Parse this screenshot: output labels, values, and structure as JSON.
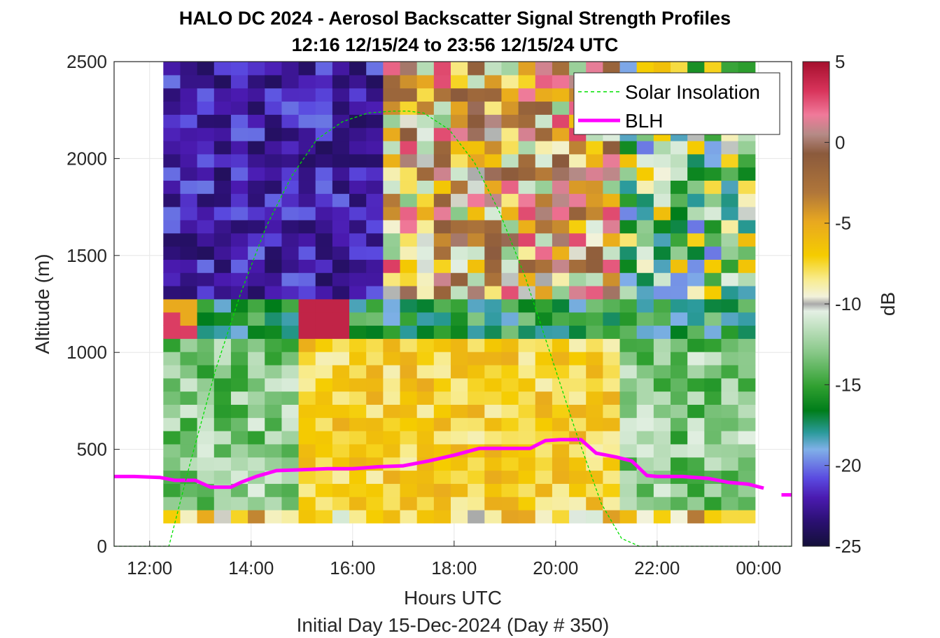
{
  "chart_data": {
    "type": "heatmap",
    "title": "HALO DC 2024 - Aerosol Backscatter Signal Strength Profiles",
    "subtitle": "12:16 12/15/24 to 23:56 12/15/24  UTC",
    "xlabel": "Hours UTC",
    "footnote": "Initial Day 15-Dec-2024 (Day # 350)",
    "ylabel": "Altitude (m)",
    "colorbar_label": "dB",
    "xlim": [
      11.3,
      24.65
    ],
    "ylim": [
      0,
      2500
    ],
    "x_ticks": [
      {
        "value": 12,
        "label": "12:00"
      },
      {
        "value": 14,
        "label": "14:00"
      },
      {
        "value": 16,
        "label": "16:00"
      },
      {
        "value": 18,
        "label": "18:00"
      },
      {
        "value": 20,
        "label": "20:00"
      },
      {
        "value": 22,
        "label": "22:00"
      },
      {
        "value": 24,
        "label": "00:00"
      }
    ],
    "y_ticks": [
      0,
      500,
      1000,
      1500,
      2000,
      2500
    ],
    "colorbar_ticks": [
      5,
      0,
      -5,
      -10,
      -15,
      -20,
      -25
    ],
    "clim": [
      -25,
      5
    ],
    "grid": true,
    "legend": {
      "position": "top-right",
      "entries": [
        {
          "name": "Solar Insolation",
          "color": "#00e000",
          "style": "dashed"
        },
        {
          "name": "BLH",
          "color": "#ff00ff",
          "style": "solid"
        }
      ]
    },
    "heatmap": {
      "x_start": 12.27,
      "x_end": 23.93,
      "y_start": 120,
      "y_end": 2500,
      "columns": 35,
      "rows": 35,
      "zone_layers": [
        {
          "name": "surface",
          "y": [
            120,
            160
          ],
          "value": -7
        },
        {
          "name": "boundary_layer",
          "y": [
            160,
            1050
          ],
          "early": -13,
          "midday": -7,
          "late": -13
        },
        {
          "name": "entrainment",
          "y": [
            1050,
            1300
          ],
          "early": -14,
          "midday": -16,
          "late": -17
        },
        {
          "name": "free_troposphere",
          "y": [
            1300,
            2500
          ],
          "early": -24,
          "midday": -5,
          "late": -12
        }
      ],
      "midday_window": [
        15.0,
        21.4
      ]
    },
    "series": [
      {
        "name": "BLH",
        "color": "#ff00ff",
        "x": [
          11.3,
          11.7,
          12.2,
          12.5,
          12.9,
          13.2,
          13.6,
          13.8,
          14.1,
          14.5,
          15.0,
          15.5,
          16.0,
          16.5,
          17.0,
          17.5,
          18.0,
          18.5,
          19.0,
          19.5,
          19.8,
          20.1,
          20.5,
          20.8,
          21.2,
          21.5,
          21.8,
          22.0,
          22.5,
          23.0,
          23.4,
          23.8,
          24.1
        ],
        "y": [
          360,
          360,
          355,
          340,
          340,
          305,
          305,
          330,
          360,
          390,
          395,
          400,
          400,
          410,
          415,
          440,
          470,
          505,
          505,
          505,
          545,
          550,
          550,
          480,
          460,
          440,
          365,
          360,
          360,
          350,
          330,
          320,
          300
        ]
      },
      {
        "name": "BLH_tail",
        "color": "#ff00ff",
        "x": [
          24.45,
          24.65
        ],
        "y": [
          265,
          265
        ]
      },
      {
        "name": "Solar Insolation",
        "color": "#00e000",
        "x": [
          11.3,
          12.38,
          12.8,
          13.3,
          13.8,
          14.3,
          14.8,
          15.3,
          15.8,
          16.3,
          16.8,
          17.1,
          17.4,
          17.9,
          18.4,
          18.9,
          19.4,
          19.9,
          20.4,
          20.9,
          21.3,
          21.65,
          21.9,
          24.65
        ],
        "y": [
          0,
          0,
          430,
          910,
          1310,
          1650,
          1910,
          2100,
          2190,
          2235,
          2245,
          2245,
          2235,
          2150,
          1980,
          1720,
          1390,
          990,
          590,
          220,
          40,
          0,
          0,
          0
        ]
      }
    ]
  }
}
